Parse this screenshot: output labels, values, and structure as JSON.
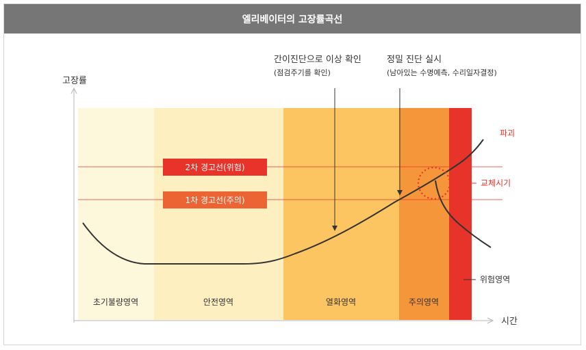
{
  "title": "엘리베이터의 고장률곡선",
  "axes": {
    "y_label": "고장률",
    "x_label": "시간"
  },
  "zones": [
    {
      "label": "초기불량영역",
      "color": "#fdf7dc"
    },
    {
      "label": "안전영역",
      "color": "#fdefc0"
    },
    {
      "label": "열화영역",
      "color": "#fcc562"
    },
    {
      "label": "주의영역",
      "color": "#f5963a"
    },
    {
      "label": "위험영역",
      "color": "#e7332a"
    }
  ],
  "warning_lines": {
    "second": {
      "label": "2차 경고선(위험)",
      "color": "#e7332a"
    },
    "first": {
      "label": "1차 경고선(주의)",
      "color": "#ec6433"
    }
  },
  "callouts": {
    "simple_check": {
      "line1": "간이진단으로 이상 확인",
      "line2": "(점검주기를 확인)"
    },
    "precise_check": {
      "line1": "정밀 진단 실시",
      "line2": "(남아있는 수명예측, 수리일자결정)"
    }
  },
  "side_labels": {
    "breakdown": "파괴",
    "replacement": "교체시기",
    "danger_zone": "위험영역"
  },
  "colors": {
    "accent_red": "#e7332a",
    "curve": "#333333",
    "axis": "#b5b5b5"
  }
}
